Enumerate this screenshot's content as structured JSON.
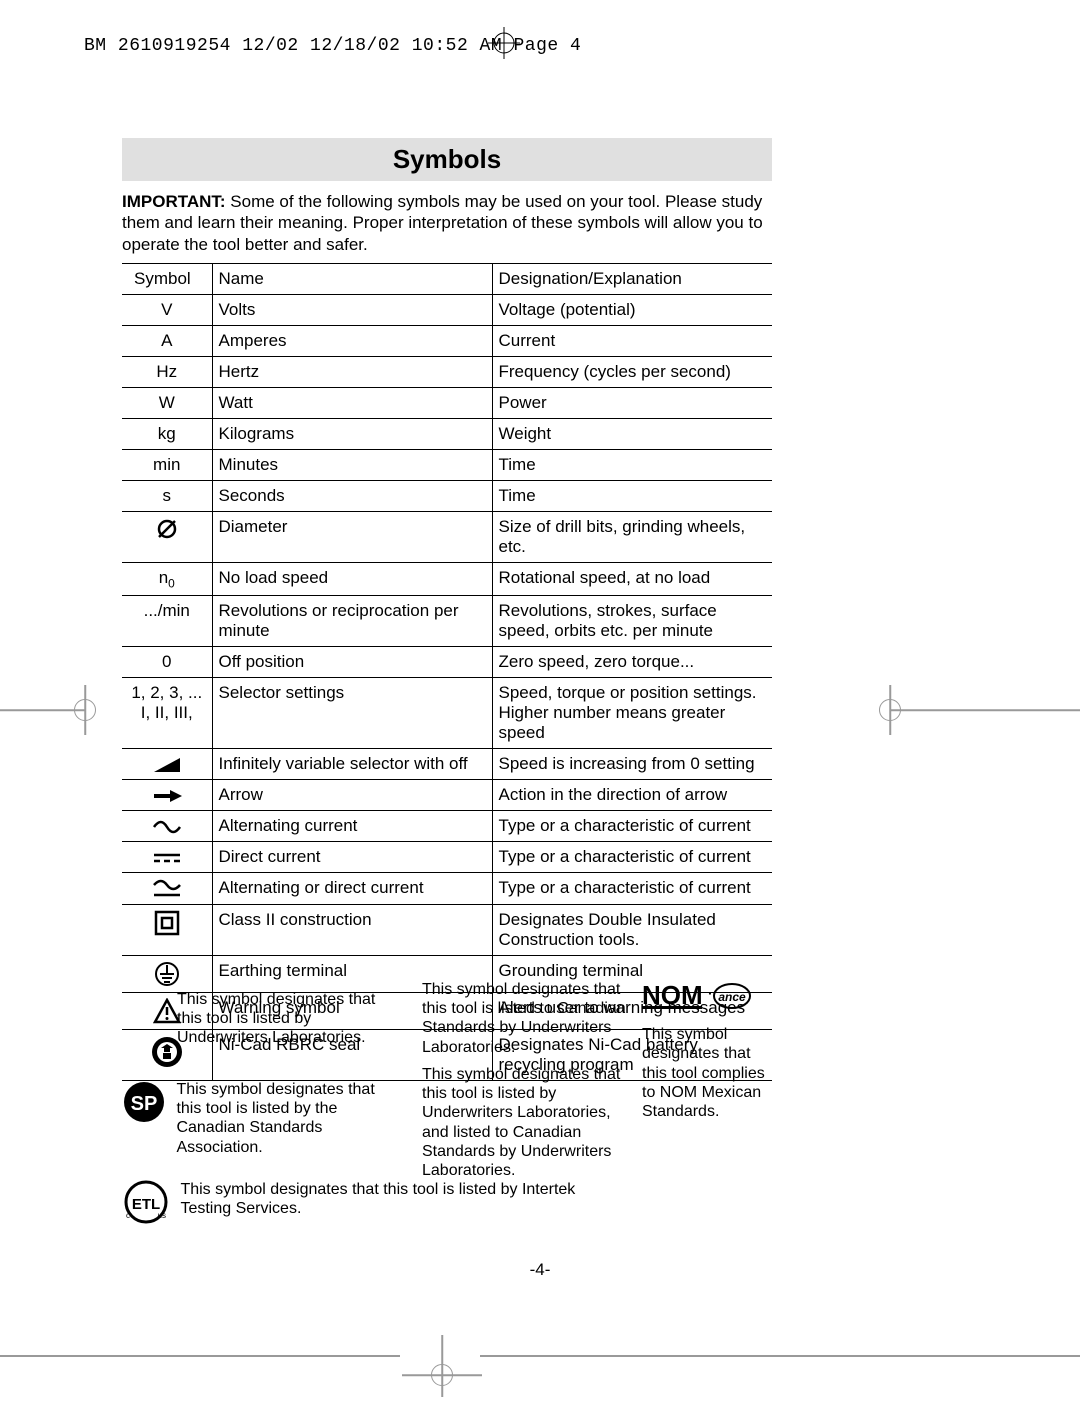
{
  "header": {
    "text": "BM 2610919254 12/02  12/18/02  10:52 AM  Page 4"
  },
  "title": "Symbols",
  "intro": {
    "bold": "IMPORTANT:",
    "rest": " Some of the following symbols may be used on your tool.  Please study them and learn their meaning.  Proper interpretation of these symbols will allow you to operate the tool better and safer."
  },
  "table": {
    "headers": {
      "c1": "Symbol",
      "c2": "Name",
      "c3": "Designation/Explanation"
    },
    "rows": [
      {
        "sym": "V",
        "name": "Volts",
        "exp": "Voltage (potential)"
      },
      {
        "sym": "A",
        "name": "Amperes",
        "exp": "Current"
      },
      {
        "sym": "Hz",
        "name": "Hertz",
        "exp": "Frequency (cycles per second)"
      },
      {
        "sym": "W",
        "name": "Watt",
        "exp": "Power"
      },
      {
        "sym": "kg",
        "name": "Kilograms",
        "exp": "Weight"
      },
      {
        "sym": "min",
        "name": "Minutes",
        "exp": "Time"
      },
      {
        "sym": "s",
        "name": "Seconds",
        "exp": "Time"
      },
      {
        "sym_icon": "diameter",
        "name": "Diameter",
        "exp": "Size of drill bits, grinding wheels,  etc."
      },
      {
        "sym_html": "n<span class='sub'>0</span>",
        "name": "No load speed",
        "exp": "Rotational speed, at no load"
      },
      {
        "sym": ".../min",
        "name": "Revolutions or reciprocation per minute",
        "exp": "Revolutions, strokes, surface speed, orbits etc. per minute"
      },
      {
        "sym": "0",
        "name": "Off position",
        "exp": "Zero speed, zero torque..."
      },
      {
        "sym_html": "1, 2, 3, ...<br>I, II, III,",
        "name": "Selector settings",
        "exp": "Speed, torque or position settings. Higher number means greater speed"
      },
      {
        "sym_icon": "ramp",
        "name": "Infinitely variable selector with off",
        "exp": "Speed is increasing from 0 setting"
      },
      {
        "sym_icon": "arrow",
        "name": "Arrow",
        "exp": "Action in the direction of arrow"
      },
      {
        "sym_icon": "ac",
        "name": "Alternating current",
        "exp": "Type or a characteristic of current"
      },
      {
        "sym_icon": "dc",
        "name": "Direct current",
        "exp": "Type or a characteristic of current"
      },
      {
        "sym_icon": "acdc",
        "name": "Alternating or direct current",
        "exp": "Type or a characteristic of current"
      },
      {
        "sym_icon": "class2",
        "name": "Class II  construction",
        "exp": "Designates Double Insulated Construction tools."
      },
      {
        "sym_icon": "earth",
        "name": "Earthing terminal",
        "exp": "Grounding terminal"
      },
      {
        "sym_icon": "warning",
        "name": "Warning symbol",
        "exp": "Alerts user to warning messages"
      },
      {
        "sym_icon": "rbrc",
        "name": "Ni-Cad RBRC seal",
        "exp": "Designates Ni-Cad battery recycling program"
      }
    ]
  },
  "footnotes": {
    "ul": "This symbol designates that this tool is listed by Underwriters Laboratories.",
    "csa": "This symbol designates that this tool is listed by the Canadian Standards Association.",
    "etl": "This symbol designates that this tool is listed by Intertek Testing Services.",
    "cul": "This symbol designates that this tool is listed to Canadian Standards by Underwriters Laboratories.",
    "culus": "This symbol designates that this tool is listed by Underwriters Laboratories, and listed to Canadian Standards by Underwriters Laboratories.",
    "nom": "This symbol designates that\nthis tool complies to NOM Mexican Standards."
  },
  "pageNumber": "-4-"
}
